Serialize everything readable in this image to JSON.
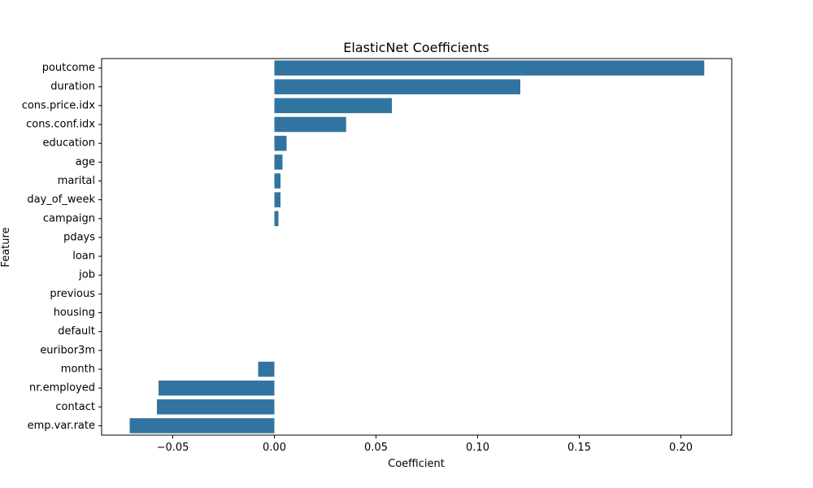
{
  "chart_data": {
    "type": "bar",
    "orientation": "horizontal",
    "title": "ElasticNet Coefficients",
    "xlabel": "Coefficient",
    "ylabel": "Feature",
    "categories": [
      "poutcome",
      "duration",
      "cons.price.idx",
      "cons.conf.idx",
      "education",
      "age",
      "marital",
      "day_of_week",
      "campaign",
      "pdays",
      "loan",
      "job",
      "previous",
      "housing",
      "default",
      "euribor3m",
      "month",
      "nr.employed",
      "contact",
      "emp.var.rate"
    ],
    "values": [
      0.2115,
      0.121,
      0.0578,
      0.0353,
      0.006,
      0.004,
      0.003,
      0.003,
      0.002,
      0.0,
      0.0,
      0.0,
      0.0,
      0.0,
      0.0,
      0.0,
      -0.008,
      -0.057,
      -0.0578,
      -0.0712
    ],
    "xlim": [
      -0.085,
      0.225
    ],
    "xticks": [
      -0.05,
      0.0,
      0.05,
      0.1,
      0.15,
      0.2
    ],
    "xtick_labels": [
      "−0.05",
      "0.00",
      "0.05",
      "0.10",
      "0.15",
      "0.20"
    ],
    "bar_color": "#3274a1",
    "grid": false,
    "legend": "none"
  }
}
